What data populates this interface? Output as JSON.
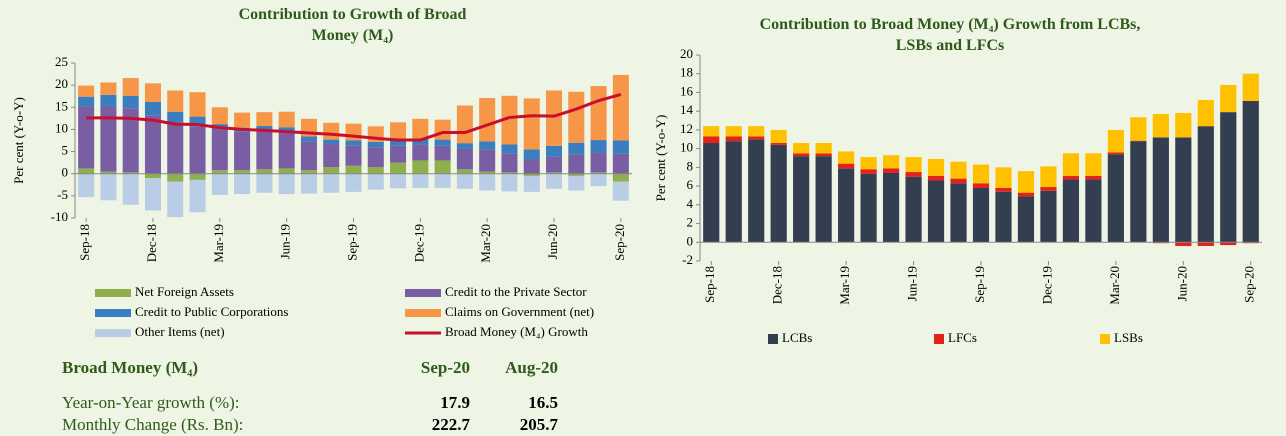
{
  "chart_data": [
    {
      "type": "bar",
      "stacked": true,
      "title": "Contribution to Growth of Broad Money (M₄)",
      "y_label": "Per cent (Y-o-Y)",
      "categories": [
        "Sep-18",
        null,
        null,
        "Dec-18",
        null,
        null,
        "Mar-19",
        null,
        null,
        "Jun-19",
        null,
        null,
        "Sep-19",
        null,
        null,
        "Dec-19",
        null,
        null,
        "Mar-20",
        null,
        null,
        "Jun-20",
        null,
        null,
        "Sep-20"
      ],
      "ylim": [
        -10,
        25
      ],
      "yticks": [
        -10,
        -5,
        0,
        5,
        10,
        15,
        20,
        25
      ],
      "grid": false,
      "legend": "bottom",
      "series": [
        {
          "name": "Net Foreign Assets",
          "color": "#8fae4c",
          "values": [
            1.2,
            0.5,
            0.3,
            -1.0,
            -1.8,
            -1.4,
            0.8,
            0.8,
            1.0,
            1.2,
            0.8,
            1.5,
            1.8,
            1.5,
            2.5,
            3.0,
            3.0,
            1.0,
            0.5,
            0.3,
            -0.5,
            0.3,
            -0.5,
            0.3,
            -1.8
          ]
        },
        {
          "name": "Credit to the Private Sector",
          "color": "#7a5ea3",
          "values": [
            14.0,
            14.8,
            14.5,
            13.2,
            11.5,
            10.7,
            9.6,
            8.7,
            8.8,
            8.2,
            6.5,
            5.2,
            4.5,
            4.5,
            3.8,
            3.5,
            3.3,
            4.6,
            5.0,
            4.3,
            3.2,
            3.5,
            4.3,
            4.5,
            4.5
          ]
        },
        {
          "name": "Credit to Public Corporations",
          "color": "#3a7ec0",
          "values": [
            2.2,
            2.5,
            2.8,
            3.0,
            2.5,
            2.2,
            0.8,
            0.9,
            1.0,
            1.1,
            1.1,
            1.0,
            1.2,
            1.2,
            1.3,
            1.4,
            1.4,
            1.3,
            1.8,
            2.0,
            2.3,
            2.5,
            2.7,
            2.8,
            3.0
          ]
        },
        {
          "name": "Claims on Government (net)",
          "color": "#f79646",
          "values": [
            2.5,
            2.8,
            4.0,
            4.2,
            4.8,
            5.5,
            3.8,
            3.4,
            3.1,
            3.5,
            4.0,
            3.8,
            3.8,
            3.5,
            4.0,
            4.5,
            4.5,
            8.5,
            9.8,
            11.0,
            11.5,
            12.5,
            11.5,
            12.2,
            14.8
          ]
        },
        {
          "name": "Other Items (net)",
          "color": "#b9cde6",
          "values": [
            -5.3,
            -6.0,
            -7.0,
            -7.3,
            -8.0,
            -7.3,
            -4.8,
            -4.6,
            -4.3,
            -4.6,
            -4.5,
            -4.3,
            -4.1,
            -3.6,
            -3.3,
            -3.2,
            -3.2,
            -3.4,
            -3.8,
            -4.0,
            -3.6,
            -3.4,
            -3.3,
            -2.8,
            -4.3
          ]
        },
        {
          "name": "Broad Money (M₄) Growth",
          "type": "line",
          "color": "#c8102e",
          "values": [
            12.6,
            12.6,
            12.5,
            12.1,
            11.2,
            11.1,
            10.4,
            10.0,
            9.8,
            9.5,
            9.2,
            8.9,
            8.5,
            8.0,
            7.6,
            7.6,
            9.3,
            9.3,
            11.0,
            12.7,
            13.1,
            13.0,
            14.6,
            16.5,
            17.9
          ]
        }
      ]
    },
    {
      "type": "bar",
      "stacked": true,
      "title": "Contribution to Broad Money (M₄) Growth from LCBs, LSBs and LFCs",
      "y_label": "Per cent (Y-o-Y)",
      "categories": [
        "Sep-18",
        null,
        null,
        "Dec-18",
        null,
        null,
        "Mar-19",
        null,
        null,
        "Jun-19",
        null,
        null,
        "Sep-19",
        null,
        null,
        "Dec-19",
        null,
        null,
        "Mar-20",
        null,
        null,
        "Jun-20",
        null,
        null,
        "Sep-20"
      ],
      "ylim": [
        -2,
        20
      ],
      "yticks": [
        -2,
        0,
        2,
        4,
        6,
        8,
        10,
        12,
        14,
        16,
        18,
        20
      ],
      "grid": false,
      "legend": "bottom",
      "series": [
        {
          "name": "LCBs",
          "color": "#333f50",
          "values": [
            10.6,
            10.8,
            11.0,
            10.4,
            9.2,
            9.2,
            7.9,
            7.3,
            7.4,
            7.0,
            6.6,
            6.3,
            5.8,
            5.4,
            4.9,
            5.5,
            6.7,
            6.7,
            9.4,
            10.8,
            11.2,
            11.2,
            12.4,
            13.9,
            15.1
          ]
        },
        {
          "name": "LFCs",
          "color": "#e3231b",
          "values": [
            0.7,
            0.5,
            0.3,
            0.2,
            0.3,
            0.3,
            0.5,
            0.5,
            0.5,
            0.5,
            0.5,
            0.5,
            0.5,
            0.4,
            0.4,
            0.4,
            0.4,
            0.4,
            0.2,
            0.05,
            -0.1,
            -0.4,
            -0.4,
            -0.3,
            -0.1
          ]
        },
        {
          "name": "LSBs",
          "color": "#ffc000",
          "values": [
            1.1,
            1.1,
            1.1,
            1.4,
            1.1,
            1.1,
            1.3,
            1.3,
            1.4,
            1.6,
            1.8,
            1.8,
            2.0,
            2.2,
            2.3,
            2.2,
            2.4,
            2.4,
            2.4,
            2.5,
            2.5,
            2.6,
            2.8,
            2.9,
            2.9
          ]
        }
      ]
    }
  ],
  "table": {
    "columns": [
      "Broad Money (M₄)",
      "Sep-20",
      "Aug-20"
    ],
    "rows": [
      [
        "Year-on-Year growth (%):",
        "17.9",
        "16.5"
      ],
      [
        "Monthly Change (Rs. Bn):",
        "222.7",
        "205.7"
      ]
    ]
  }
}
